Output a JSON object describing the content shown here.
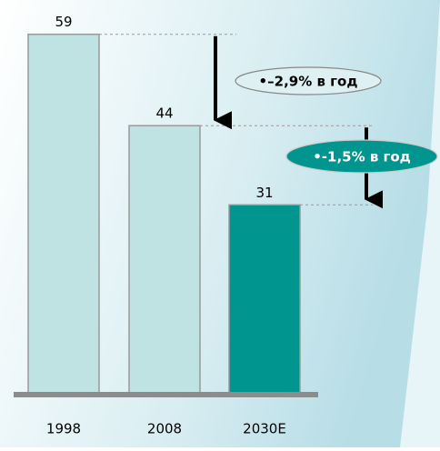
{
  "chart_data": {
    "type": "bar",
    "categories": [
      "1998",
      "2008",
      "2030E"
    ],
    "values": [
      59,
      44,
      31
    ],
    "colors": [
      "#bfe3e3",
      "#bfe3e3",
      "#00968f"
    ],
    "annotations": [
      "•–2,9% в год",
      "•-1,5% в год"
    ]
  }
}
